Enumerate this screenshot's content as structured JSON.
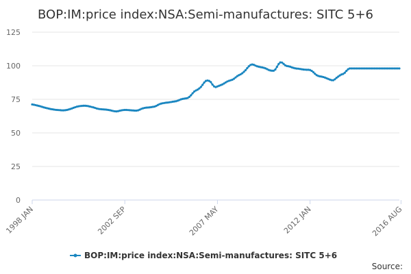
{
  "chart_data": {
    "type": "line",
    "title": "BOP:IM:price index:NSA:Semi-manufactures: SITC 5+6",
    "xlabel": "",
    "ylabel": "",
    "ylim": [
      0,
      125
    ],
    "yticks": [
      "0",
      "25",
      "50",
      "75",
      "100",
      "125"
    ],
    "xticks": [
      {
        "label": "1998 JAN",
        "index": 0
      },
      {
        "label": "2002 SEP",
        "index": 56
      },
      {
        "label": "2007 MAY",
        "index": 112
      },
      {
        "label": "2012 JAN",
        "index": 168
      },
      {
        "label": "2016 AUG",
        "index": 223
      }
    ],
    "grid": true,
    "legend_position": "bottom",
    "color": "#1a86c0",
    "series": [
      {
        "name": "BOP:IM:price index:NSA:Semi-manufactures: SITC 5+6",
        "start": "1998 JAN",
        "end": "2016 AUG",
        "frequency": "monthly",
        "values": [
          71.2,
          71.0,
          70.7,
          70.4,
          70.1,
          69.8,
          69.4,
          69.0,
          68.7,
          68.4,
          68.1,
          67.8,
          67.6,
          67.4,
          67.2,
          67.1,
          67.0,
          66.9,
          66.8,
          66.8,
          66.9,
          67.1,
          67.4,
          67.8,
          68.2,
          68.7,
          69.1,
          69.5,
          69.8,
          70.0,
          70.1,
          70.2,
          70.2,
          70.1,
          69.9,
          69.6,
          69.3,
          69.0,
          68.6,
          68.2,
          67.9,
          67.7,
          67.6,
          67.5,
          67.4,
          67.3,
          67.1,
          66.9,
          66.6,
          66.3,
          66.1,
          66.0,
          66.2,
          66.5,
          66.8,
          67.0,
          67.1,
          67.1,
          67.0,
          66.9,
          66.8,
          66.7,
          66.6,
          66.6,
          66.8,
          67.3,
          67.9,
          68.3,
          68.6,
          68.8,
          68.9,
          69.0,
          69.2,
          69.4,
          69.6,
          70.1,
          70.8,
          71.4,
          71.8,
          72.1,
          72.3,
          72.5,
          72.6,
          72.8,
          73.0,
          73.2,
          73.4,
          73.6,
          74.0,
          74.5,
          75.0,
          75.3,
          75.5,
          75.7,
          76.0,
          76.8,
          78.0,
          79.5,
          80.8,
          81.6,
          82.2,
          83.1,
          84.2,
          85.8,
          87.5,
          88.7,
          89.0,
          88.7,
          87.8,
          86.0,
          84.6,
          84.1,
          84.6,
          85.1,
          85.6,
          86.1,
          86.8,
          87.6,
          88.3,
          88.8,
          89.2,
          89.6,
          90.3,
          91.3,
          92.3,
          93.0,
          93.6,
          94.4,
          95.5,
          96.7,
          98.2,
          99.6,
          100.6,
          101.0,
          100.7,
          100.1,
          99.6,
          99.3,
          99.0,
          98.8,
          98.5,
          98.1,
          97.5,
          96.9,
          96.5,
          96.3,
          96.3,
          97.2,
          99.2,
          101.3,
          102.5,
          102.4,
          101.4,
          100.3,
          99.8,
          99.6,
          99.3,
          98.8,
          98.4,
          98.1,
          97.9,
          97.8,
          97.6,
          97.4,
          97.2,
          97.1,
          97.0,
          97.0,
          96.8,
          96.2,
          95.2,
          94.0,
          93.0,
          92.4,
          92.1,
          91.9,
          91.6,
          91.2,
          90.7,
          90.2,
          89.7,
          89.3,
          89.2,
          89.9,
          91.0,
          91.9,
          92.8,
          93.5,
          93.9,
          94.8,
          96.2,
          97.4,
          98.0,
          98.0,
          98.0,
          98.0,
          98.0,
          98.0,
          98.0,
          98.0,
          98.0,
          98.0,
          98.0,
          98.0,
          98.0,
          98.0,
          98.0,
          98.0,
          98.0,
          98.0,
          98.0,
          98.0,
          98.0,
          98.0,
          98.0,
          98.0,
          98.0,
          98.0,
          98.0,
          98.0,
          98.0,
          98.0,
          98.0
        ]
      }
    ]
  },
  "legend": {
    "label": "BOP:IM:price index:NSA:Semi-manufactures: SITC 5+6"
  },
  "source_label": "Source:"
}
